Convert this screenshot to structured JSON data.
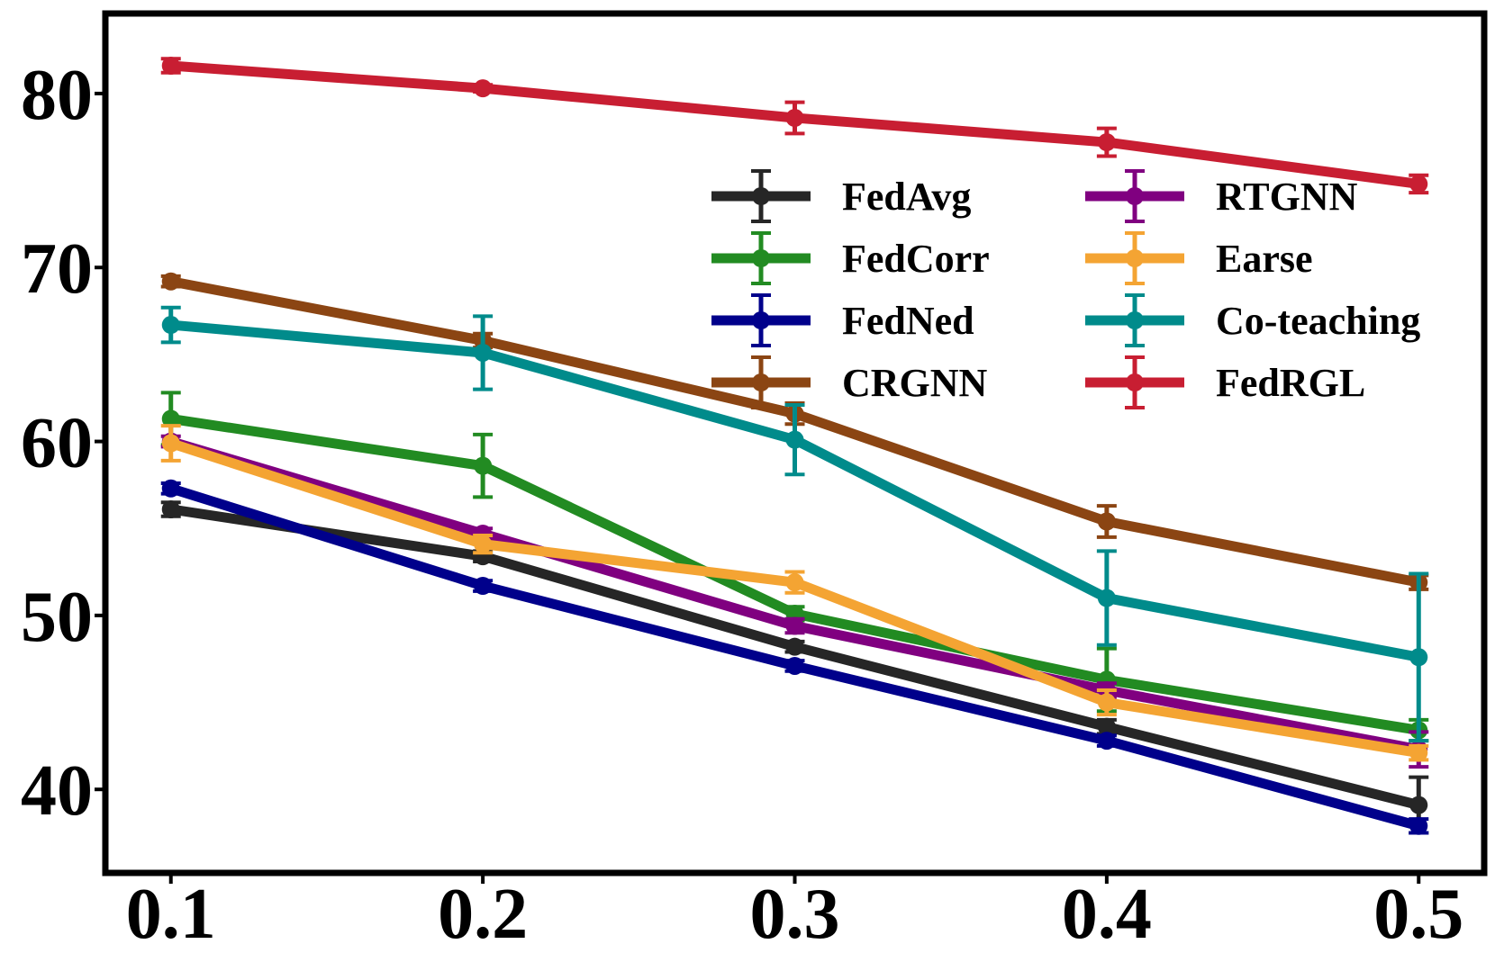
{
  "chart_data": {
    "type": "line",
    "title": "",
    "xlabel": "",
    "ylabel": "",
    "x": [
      0.1,
      0.2,
      0.3,
      0.4,
      0.5
    ],
    "x_tick_labels": [
      "0.1",
      "0.2",
      "0.3",
      "0.4",
      "0.5"
    ],
    "y_ticks": [
      40,
      50,
      60,
      70,
      80
    ],
    "y_tick_labels": [
      "40",
      "50",
      "60",
      "70",
      "80"
    ],
    "xlim": [
      0.079,
      0.521
    ],
    "ylim": [
      35.2,
      84.6
    ],
    "grid": false,
    "legend_position": "upper-right",
    "legend_columns": 2,
    "series": [
      {
        "name": "FedAvg",
        "color": "#262626",
        "values": [
          56.1,
          53.4,
          48.2,
          43.6,
          39.1
        ],
        "errors": [
          0.4,
          0.3,
          0.3,
          0.4,
          1.6
        ]
      },
      {
        "name": "FedCorr",
        "color": "#228b22",
        "values": [
          61.3,
          58.6,
          50.1,
          46.3,
          43.4
        ],
        "errors": [
          1.5,
          1.8,
          0.4,
          1.8,
          0.6
        ]
      },
      {
        "name": "FedNed",
        "color": "#00008b",
        "values": [
          57.3,
          51.7,
          47.1,
          42.8,
          37.9
        ],
        "errors": [
          0.3,
          0.3,
          0.3,
          0.3,
          0.4
        ]
      },
      {
        "name": "CRGNN",
        "color": "#8b4513",
        "values": [
          69.2,
          65.8,
          61.6,
          55.4,
          51.9
        ],
        "errors": [
          0.3,
          0.4,
          0.6,
          0.9,
          0.4
        ]
      },
      {
        "name": "RTGNN",
        "color": "#800080",
        "values": [
          60.0,
          54.7,
          49.4,
          45.7,
          42.3
        ],
        "errors": [
          0.3,
          0.3,
          0.4,
          0.4,
          1.0
        ]
      },
      {
        "name": "Earse",
        "color": "#f4a433",
        "values": [
          59.9,
          54.1,
          51.9,
          45.0,
          42.1
        ],
        "errors": [
          1.0,
          0.5,
          0.6,
          0.7,
          0.4
        ]
      },
      {
        "name": "Co-teaching",
        "color": "#008b8b",
        "values": [
          66.7,
          65.1,
          60.1,
          51.0,
          47.6
        ],
        "errors": [
          1.0,
          2.1,
          2.0,
          2.7,
          4.8
        ]
      },
      {
        "name": "FedRGL",
        "color": "#c81e32",
        "values": [
          81.6,
          80.3,
          78.6,
          77.2,
          74.8
        ],
        "errors": [
          0.4,
          0.2,
          0.9,
          0.8,
          0.5
        ]
      }
    ]
  }
}
